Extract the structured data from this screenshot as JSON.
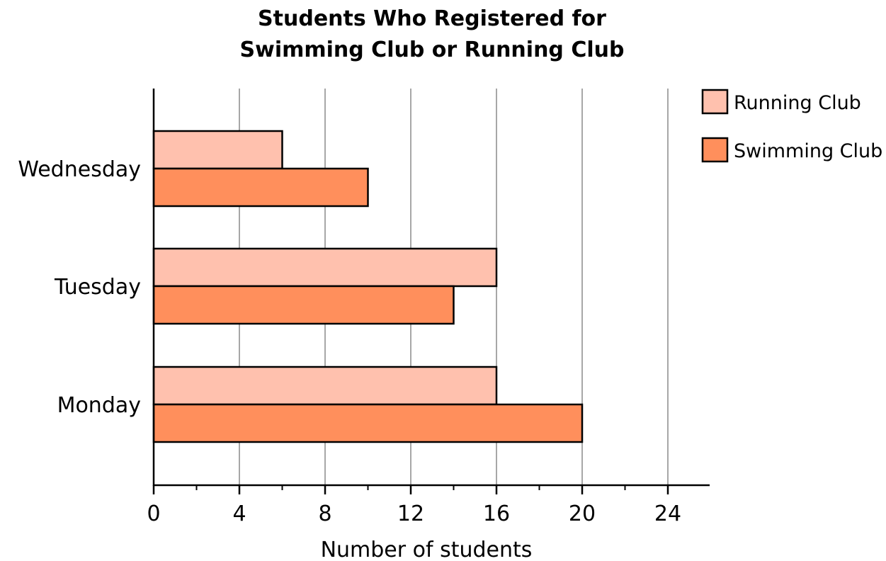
{
  "chart_data": {
    "type": "bar",
    "orientation": "horizontal",
    "title_lines": [
      "Students Who Registered for",
      "Swimming Club or Running Club"
    ],
    "xlabel": "Number of students",
    "ylabel": "",
    "categories": [
      "Monday",
      "Tuesday",
      "Wednesday"
    ],
    "series": [
      {
        "name": "Running Club",
        "values": [
          16,
          16,
          6
        ],
        "color": "#FFC1AE"
      },
      {
        "name": "Swimming Club",
        "values": [
          20,
          14,
          10
        ],
        "color": "#FF8F5C"
      }
    ],
    "x_ticks": [
      0,
      4,
      8,
      12,
      16,
      20,
      24
    ],
    "x_minor_tick_step": 2,
    "xlim": [
      0,
      26
    ],
    "grid": true,
    "legend_position": "top-right"
  }
}
